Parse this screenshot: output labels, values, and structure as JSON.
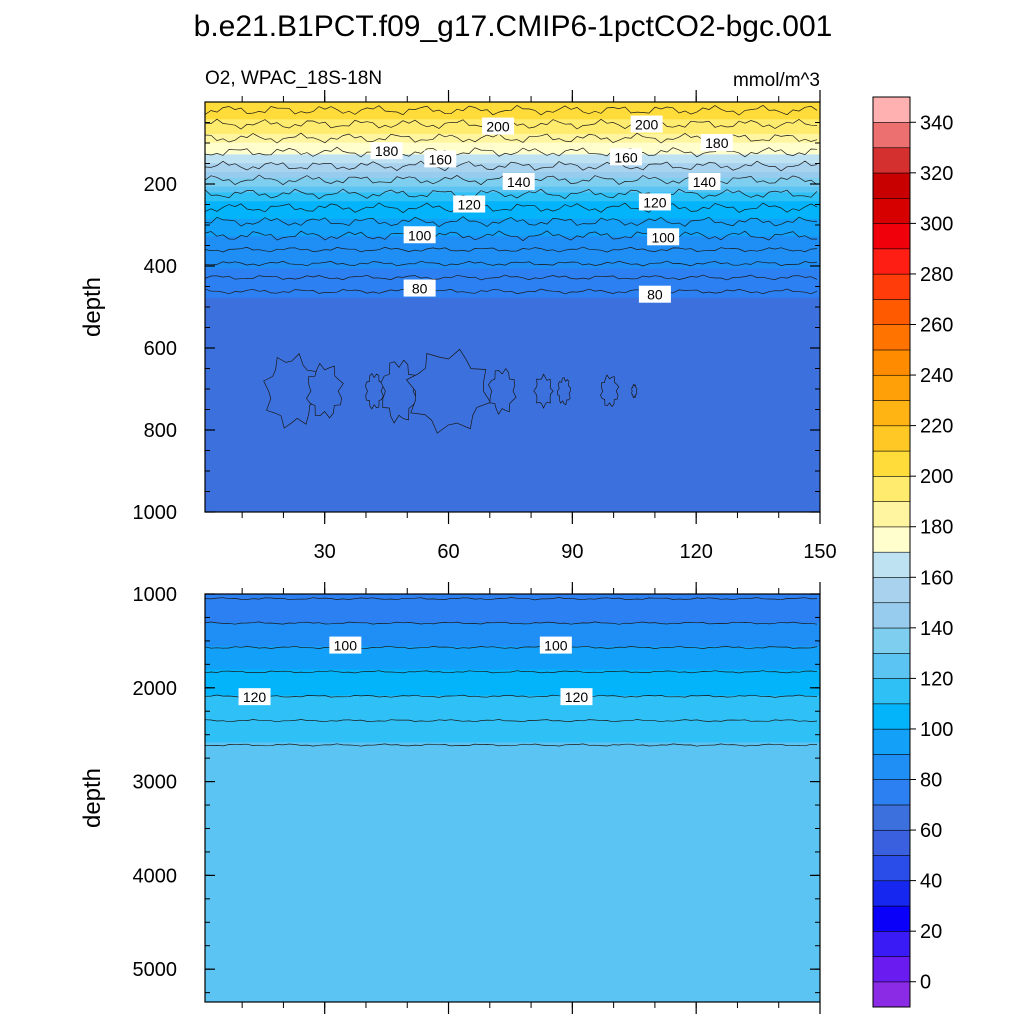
{
  "title": "b.e21.B1PCT.f09_g17.CMIP6-1pctCO2-bgc.001",
  "variable_label": "O2, WPAC_18S-18N",
  "units_label": "mmol/m^3",
  "chart_data": [
    {
      "type": "heatmap",
      "panel": "upper",
      "x_range": [
        1,
        150
      ],
      "x_ticks": [
        30,
        60,
        90,
        120,
        150
      ],
      "ylabel": "depth",
      "ylim": [
        0,
        1000
      ],
      "y_inverted": true,
      "y_ticks": [
        200,
        400,
        600,
        800,
        1000
      ],
      "levels": [
        {
          "depth": 40,
          "o2": 210
        },
        {
          "depth": 80,
          "o2": 200
        },
        {
          "depth": 150,
          "o2": 170
        },
        {
          "depth": 240,
          "o2": 120
        },
        {
          "depth": 330,
          "o2": 100
        },
        {
          "depth": 480,
          "o2": 80
        },
        {
          "depth": 700,
          "o2": 70
        },
        {
          "depth": 1000,
          "o2": 75
        }
      ],
      "contour_labels": [
        {
          "x": 72,
          "depth": 60,
          "text": "200"
        },
        {
          "x": 108,
          "depth": 55,
          "text": "200"
        },
        {
          "x": 45,
          "depth": 120,
          "text": "180"
        },
        {
          "x": 125,
          "depth": 100,
          "text": "180"
        },
        {
          "x": 58,
          "depth": 140,
          "text": "160"
        },
        {
          "x": 103,
          "depth": 135,
          "text": "160"
        },
        {
          "x": 77,
          "depth": 195,
          "text": "140"
        },
        {
          "x": 122,
          "depth": 195,
          "text": "140"
        },
        {
          "x": 65,
          "depth": 250,
          "text": "120"
        },
        {
          "x": 110,
          "depth": 245,
          "text": "120"
        },
        {
          "x": 53,
          "depth": 325,
          "text": "100"
        },
        {
          "x": 112,
          "depth": 330,
          "text": "100"
        },
        {
          "x": 53,
          "depth": 455,
          "text": "80"
        },
        {
          "x": 110,
          "depth": 470,
          "text": "80"
        }
      ]
    },
    {
      "type": "heatmap",
      "panel": "lower",
      "x_range": [
        1,
        150
      ],
      "ylabel": "depth",
      "ylim": [
        1000,
        5350
      ],
      "y_inverted": true,
      "y_ticks": [
        1000,
        2000,
        3000,
        4000,
        5000
      ],
      "levels": [
        {
          "depth": 1050,
          "o2": 80
        },
        {
          "depth": 1300,
          "o2": 90
        },
        {
          "depth": 1550,
          "o2": 100
        },
        {
          "depth": 1800,
          "o2": 110
        },
        {
          "depth": 2100,
          "o2": 120
        },
        {
          "depth": 2600,
          "o2": 130
        },
        {
          "depth": 5350,
          "o2": 135
        }
      ],
      "contour_labels": [
        {
          "x": 35,
          "depth": 1550,
          "text": "100"
        },
        {
          "x": 86,
          "depth": 1550,
          "text": "100"
        },
        {
          "x": 13,
          "depth": 2100,
          "text": "120"
        },
        {
          "x": 91,
          "depth": 2100,
          "text": "120"
        }
      ]
    }
  ],
  "colorbar": {
    "tick_labels": [
      "0",
      "20",
      "40",
      "60",
      "80",
      "100",
      "120",
      "140",
      "160",
      "180",
      "200",
      "220",
      "240",
      "260",
      "280",
      "300",
      "320",
      "340"
    ],
    "colors": [
      "#8b2be6",
      "#6a1cf0",
      "#3a1af5",
      "#0a00fa",
      "#1628f0",
      "#2a4ce8",
      "#3a60e0",
      "#3c70dc",
      "#2d80f2",
      "#1f8ef5",
      "#12a0f8",
      "#03b4fb",
      "#2fc0f6",
      "#5cc4f2",
      "#7ecef0",
      "#98ccee",
      "#a8d2ee",
      "#bee2f2",
      "#fffecc",
      "#fff5a0",
      "#ffec6e",
      "#ffdc3a",
      "#ffc824",
      "#ffb414",
      "#ffa008",
      "#ff8c00",
      "#ff7400",
      "#ff5a00",
      "#ff3c0a",
      "#ff1e14",
      "#f0000a",
      "#d60000",
      "#c80000",
      "#d43030",
      "#ec7070",
      "#ffb0b0"
    ]
  }
}
